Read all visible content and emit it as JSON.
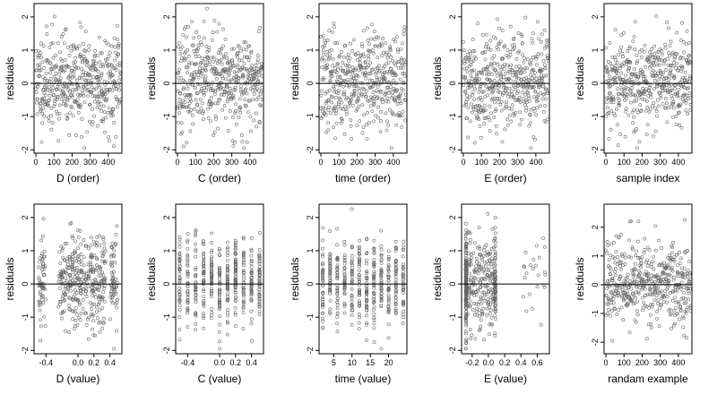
{
  "chart_data": [
    {
      "type": "scatter",
      "xlabel": "D (order)",
      "ylabel": "residuals",
      "xlim": [
        -10,
        475
      ],
      "ylim": [
        -2.1,
        2.4
      ],
      "xticks": [
        0,
        100,
        200,
        300,
        400
      ],
      "yticks": [
        -2,
        -1,
        0,
        1,
        2
      ],
      "reference_line_y": 0,
      "gen": "order",
      "seed": 11
    },
    {
      "type": "scatter",
      "xlabel": "C (order)",
      "ylabel": "residuals",
      "xlim": [
        -10,
        475
      ],
      "ylim": [
        -2.1,
        2.4
      ],
      "xticks": [
        0,
        100,
        200,
        300,
        400
      ],
      "yticks": [
        -2,
        -1,
        0,
        1,
        2
      ],
      "reference_line_y": 0,
      "gen": "order",
      "seed": 23
    },
    {
      "type": "scatter",
      "xlabel": "time (order)",
      "ylabel": "residuals",
      "xlim": [
        -10,
        475
      ],
      "ylim": [
        -2.1,
        2.4
      ],
      "xticks": [
        0,
        100,
        200,
        300,
        400
      ],
      "yticks": [
        -2,
        -1,
        0,
        1,
        2
      ],
      "reference_line_y": 0,
      "gen": "order",
      "seed": 37
    },
    {
      "type": "scatter",
      "xlabel": "E (order)",
      "ylabel": "residuals",
      "xlim": [
        -10,
        475
      ],
      "ylim": [
        -2.1,
        2.4
      ],
      "xticks": [
        0,
        100,
        200,
        300,
        400
      ],
      "yticks": [
        -2,
        -1,
        0,
        1,
        2
      ],
      "reference_line_y": 0,
      "gen": "order",
      "seed": 41
    },
    {
      "type": "scatter",
      "xlabel": "sample index",
      "ylabel": "residuals",
      "xlim": [
        -10,
        475
      ],
      "ylim": [
        -2.1,
        2.4
      ],
      "xticks": [
        0,
        100,
        200,
        300,
        400
      ],
      "yticks": [
        -2,
        -1,
        0,
        1,
        2
      ],
      "reference_line_y": 0,
      "gen": "order",
      "seed": 53
    },
    {
      "type": "scatter",
      "xlabel": "D (value)",
      "ylabel": "residuals",
      "xlim": [
        -0.55,
        0.55
      ],
      "ylim": [
        -2.1,
        2.4
      ],
      "xticks": [
        -0.4,
        0.0,
        0.2,
        0.4
      ],
      "xtick_labels": [
        "-0.4",
        "0.0",
        "0.2",
        "0.4"
      ],
      "yticks": [
        -2,
        -1,
        0,
        1,
        2
      ],
      "reference_line_y": 0,
      "gen": "clusters",
      "centers": [
        -0.45,
        -0.2,
        -0.1,
        0.0,
        0.1,
        0.2,
        0.3,
        0.45
      ],
      "seed": 61
    },
    {
      "type": "scatter",
      "xlabel": "C (value)",
      "ylabel": "residuals",
      "xlim": [
        -0.55,
        0.55
      ],
      "ylim": [
        -2.1,
        2.4
      ],
      "xticks": [
        -0.4,
        0.0,
        0.2,
        0.4
      ],
      "xtick_labels": [
        "-0.4",
        "0.0",
        "0.2",
        "0.4"
      ],
      "yticks": [
        -2,
        -1,
        0,
        1,
        2
      ],
      "reference_line_y": 0,
      "gen": "columns",
      "centers": [
        -0.5,
        -0.4,
        -0.3,
        -0.2,
        -0.1,
        0.0,
        0.1,
        0.2,
        0.3,
        0.4,
        0.5
      ],
      "seed": 71
    },
    {
      "type": "scatter",
      "xlabel": "time (value)",
      "ylabel": "residuals",
      "xlim": [
        1,
        25
      ],
      "ylim": [
        -2.1,
        2.4
      ],
      "xticks": [
        5,
        10,
        15,
        20
      ],
      "yticks": [
        -2,
        -1,
        0,
        1,
        2
      ],
      "reference_line_y": 0,
      "gen": "columns",
      "centers": [
        2,
        4,
        6,
        8,
        10,
        12,
        14,
        16,
        18,
        20,
        22,
        24
      ],
      "seed": 83
    },
    {
      "type": "scatter",
      "xlabel": "E (value)",
      "ylabel": "residuals",
      "xlim": [
        -0.33,
        0.75
      ],
      "ylim": [
        -2.1,
        2.4
      ],
      "xticks": [
        -0.2,
        0.0,
        0.2,
        0.4,
        0.6
      ],
      "xtick_labels": [
        "-0.2",
        "0.0",
        "0.2",
        "0.4",
        "0.6"
      ],
      "yticks": [
        -2,
        -1,
        0,
        1,
        2
      ],
      "reference_line_y": 0,
      "gen": "e_value",
      "seed": 97
    },
    {
      "type": "scatter",
      "xlabel": "randam example",
      "ylabel": "residuals",
      "xlim": [
        -10,
        475
      ],
      "ylim": [
        -2.4,
        2.8
      ],
      "xticks": [
        0,
        100,
        200,
        300,
        400
      ],
      "yticks": [
        -2,
        -1,
        0,
        1,
        2
      ],
      "reference_line_y": 0,
      "gen": "order",
      "seed": 107
    }
  ]
}
